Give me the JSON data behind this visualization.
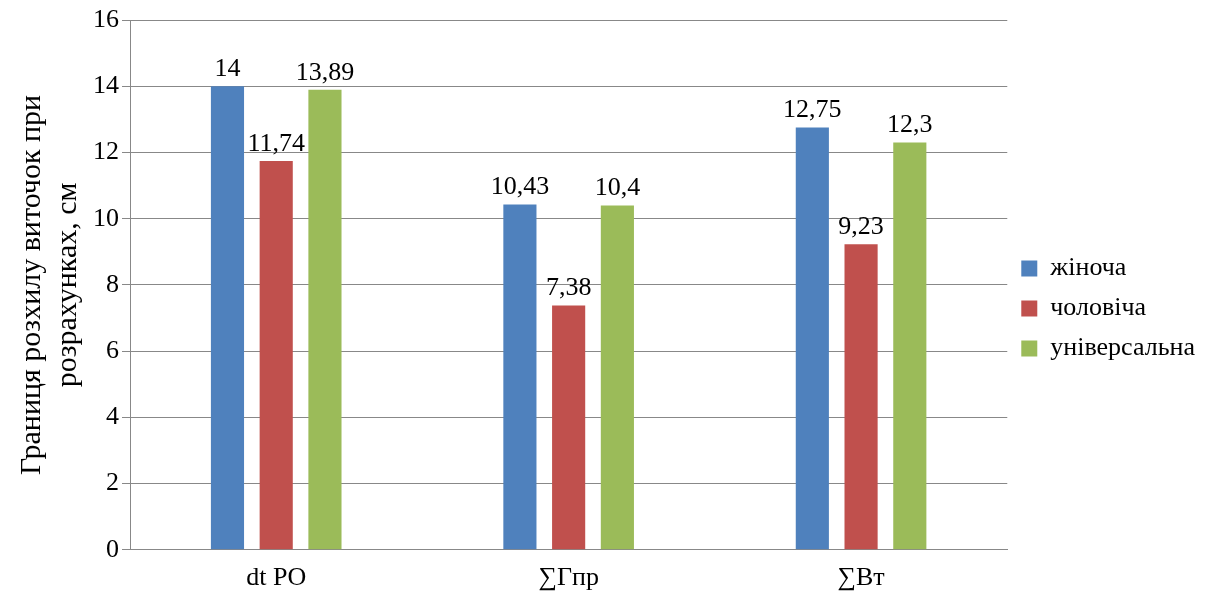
{
  "chart_data": {
    "type": "bar",
    "ylabel": "Границя розхилу виточок при розрахунках, см",
    "categories": [
      "dt PO",
      "∑Гпр",
      "∑Вт"
    ],
    "series": [
      {
        "name": "жіноча",
        "color": "#4f81bd",
        "values": [
          14,
          10.43,
          12.75
        ],
        "value_labels": [
          "14",
          "10,43",
          "12,75"
        ]
      },
      {
        "name": "чоловіча",
        "color": "#c0504d",
        "values": [
          11.74,
          7.38,
          9.23
        ],
        "value_labels": [
          "11,74",
          "7,38",
          "9,23"
        ]
      },
      {
        "name": "універсальна",
        "color": "#9bbb59",
        "values": [
          13.89,
          10.4,
          12.3
        ],
        "value_labels": [
          "13,89",
          "10,4",
          "12,3"
        ]
      }
    ],
    "ylim": [
      0,
      16
    ],
    "yticks": [
      0,
      2,
      4,
      6,
      8,
      10,
      12,
      14,
      16
    ],
    "grid": "y",
    "legend": "right"
  }
}
